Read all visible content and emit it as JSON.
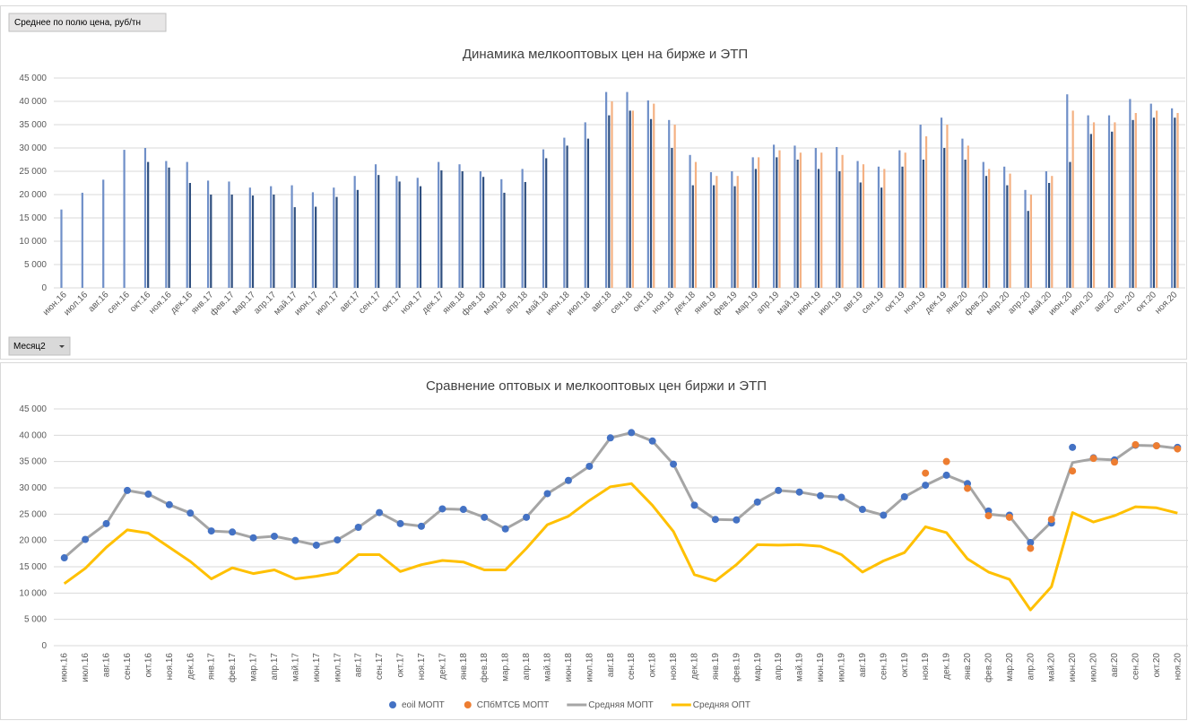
{
  "pivot": {
    "value_field": "Среднее по полю цена, руб/тн",
    "row_field": "Месяц2"
  },
  "chart_data": [
    {
      "type": "bar",
      "title": "Динамика мелкооптовых цен на бирже и ЭТП",
      "categories": [
        "июн.16",
        "июл.16",
        "авг.16",
        "сен.16",
        "окт.16",
        "ноя.16",
        "дек.16",
        "янв.17",
        "фев.17",
        "мар.17",
        "апр.17",
        "май.17",
        "июн.17",
        "июл.17",
        "авг.17",
        "сен.17",
        "окт.17",
        "ноя.17",
        "дек.17",
        "янв.18",
        "фев.18",
        "мар.18",
        "апр.18",
        "май.18",
        "июн.18",
        "июл.18",
        "авг.18",
        "сен.18",
        "окт.18",
        "ноя.18",
        "дек.18",
        "янв.19",
        "фев.19",
        "мар.19",
        "апр.19",
        "май.19",
        "июн.19",
        "июл.19",
        "авг.19",
        "сен.19",
        "окт.19",
        "ноя.19",
        "дек.19",
        "янв.20",
        "фев.20",
        "мар.20",
        "апр.20",
        "май.20",
        "июн.20",
        "июл.20",
        "авг.20",
        "сен.20",
        "окт.20",
        "ноя.20"
      ],
      "series": [
        {
          "color": "#6f8fc8",
          "values": [
            16800,
            20400,
            23200,
            29600,
            30000,
            27200,
            27000,
            23000,
            22800,
            21500,
            21800,
            22000,
            20500,
            21500,
            24000,
            26500,
            24000,
            23600,
            27000,
            26500,
            25000,
            23300,
            25500,
            29700,
            32200,
            35500,
            42000,
            42000,
            40200,
            36000,
            28500,
            24800,
            25000,
            28000,
            30700,
            30500,
            30000,
            30200,
            27200,
            26000,
            29500,
            35000,
            36500,
            32000,
            27000,
            26000,
            21000,
            25000,
            41500,
            37000,
            37000,
            40500,
            39500,
            38500
          ]
        },
        {
          "color": "#2f4f7f",
          "values": [
            null,
            null,
            null,
            null,
            27000,
            25800,
            22500,
            20000,
            20000,
            19800,
            20000,
            17300,
            17400,
            19500,
            21000,
            24200,
            22800,
            21800,
            25200,
            25000,
            23800,
            20400,
            22700,
            27800,
            30500,
            32000,
            37000,
            38000,
            36200,
            30000,
            22000,
            22000,
            21800,
            25500,
            28000,
            27500,
            25500,
            25000,
            22600,
            21500,
            26000,
            27500,
            30000,
            27500,
            24000,
            22000,
            16500,
            22500,
            27000,
            33000,
            33500,
            36000,
            36500,
            36500
          ]
        },
        {
          "color": "#f4b183",
          "values": [
            null,
            null,
            null,
            null,
            null,
            null,
            null,
            null,
            null,
            null,
            null,
            null,
            null,
            null,
            null,
            null,
            null,
            null,
            null,
            null,
            null,
            null,
            null,
            null,
            null,
            null,
            40000,
            38000,
            39500,
            35000,
            27000,
            24000,
            24000,
            28000,
            29500,
            29000,
            29000,
            28500,
            26500,
            25500,
            29000,
            32500,
            35000,
            30500,
            25500,
            24500,
            20000,
            24000,
            38000,
            35500,
            35500,
            37500,
            38000,
            37500
          ]
        }
      ],
      "ylim": [
        0,
        45000
      ],
      "yticks": [
        0,
        {
          "value": 5000,
          "label": "5 000"
        },
        {
          "value": 10000,
          "label": "10 000"
        },
        {
          "value": 15000,
          "label": "15 000"
        },
        {
          "value": 20000,
          "label": "20 000"
        },
        {
          "value": 25000,
          "label": "25 000"
        },
        {
          "value": 30000,
          "label": "30 000"
        },
        {
          "value": 35000,
          "label": "35 000"
        },
        {
          "value": 40000,
          "label": "40 000"
        },
        {
          "value": 45000,
          "label": "45 000"
        }
      ],
      "grid": true
    },
    {
      "type": "line",
      "title": "Сравнение оптовых и мелкооптовых цен биржи и ЭТП",
      "categories": [
        "июн.16",
        "июл.16",
        "авг.16",
        "сен.16",
        "окт.16",
        "ноя.16",
        "дек.16",
        "янв.17",
        "фев.17",
        "мар.17",
        "апр.17",
        "май.17",
        "июн.17",
        "июл.17",
        "авг.17",
        "сен.17",
        "окт.17",
        "ноя.17",
        "дек.17",
        "янв.18",
        "фев.18",
        "мар.18",
        "апр.18",
        "май.18",
        "июн.18",
        "июл.18",
        "авг.18",
        "сен.18",
        "окт.18",
        "ноя.18",
        "дек.18",
        "янв.19",
        "фев.19",
        "мар.19",
        "апр.19",
        "май.19",
        "июн.19",
        "июл.19",
        "авг.19",
        "сен.19",
        "окт.19",
        "ноя.19",
        "дек.19",
        "янв.20",
        "фев.20",
        "мар.20",
        "апр.20",
        "май.20",
        "июн.20",
        "июл.20",
        "авг.20",
        "сен.20",
        "окт.20",
        "ноя.20"
      ],
      "series": [
        {
          "name": "eoil МОПТ",
          "color": "#4472c4",
          "style": "markers",
          "values": [
            16700,
            20200,
            23200,
            29500,
            28800,
            26800,
            25200,
            21800,
            21600,
            20500,
            20800,
            20000,
            19100,
            20100,
            22500,
            25300,
            23200,
            22700,
            26000,
            25900,
            24400,
            22200,
            24400,
            28900,
            31400,
            34100,
            39500,
            40500,
            38900,
            34500,
            26700,
            24000,
            23900,
            27300,
            29500,
            29200,
            28500,
            28200,
            25900,
            24800,
            28300,
            30500,
            32400,
            30800,
            25600,
            24800,
            19600,
            23300,
            37700,
            35700,
            35300,
            38100,
            38000,
            37700
          ]
        },
        {
          "name": "СПбМТСБ МОПТ",
          "color": "#ed7d31",
          "style": "markers",
          "values": [
            null,
            null,
            null,
            null,
            null,
            null,
            null,
            null,
            null,
            null,
            null,
            null,
            null,
            null,
            null,
            null,
            null,
            null,
            null,
            null,
            null,
            null,
            null,
            null,
            null,
            null,
            null,
            null,
            null,
            null,
            null,
            null,
            null,
            null,
            null,
            null,
            null,
            null,
            null,
            null,
            null,
            32800,
            35000,
            29900,
            24700,
            24400,
            18500,
            24000,
            33200,
            35600,
            34900,
            38200,
            38000,
            37400
          ]
        },
        {
          "name": "Средняя МОПТ",
          "color": "#a5a5a5",
          "style": "line",
          "values": [
            16700,
            20200,
            23200,
            29500,
            28800,
            26800,
            25200,
            21800,
            21600,
            20500,
            20800,
            20000,
            19100,
            20100,
            22500,
            25300,
            23200,
            22700,
            26000,
            25900,
            24400,
            22200,
            24400,
            28900,
            31400,
            34100,
            39500,
            40500,
            38900,
            34500,
            26700,
            24000,
            23900,
            27300,
            29500,
            29200,
            28500,
            28200,
            25900,
            24800,
            28300,
            30500,
            32400,
            30800,
            25000,
            24600,
            19600,
            23500,
            34800,
            35500,
            35300,
            38100,
            38000,
            37500
          ]
        },
        {
          "name": "Средняя ОПТ",
          "color": "#ffc000",
          "style": "line",
          "values": [
            11800,
            14700,
            18700,
            22000,
            21400,
            18700,
            16000,
            12700,
            14800,
            13700,
            14400,
            12700,
            13200,
            13900,
            17300,
            17300,
            14100,
            15400,
            16200,
            15900,
            14400,
            14400,
            18500,
            23000,
            24600,
            27600,
            30200,
            30800,
            26700,
            21700,
            13500,
            12300,
            15400,
            19200,
            19100,
            19200,
            18900,
            17300,
            14000,
            16100,
            17700,
            22600,
            21500,
            16500,
            14000,
            12600,
            6800,
            11200,
            25300,
            23500,
            24700,
            26400,
            26200,
            25200
          ]
        }
      ],
      "ylim": [
        0,
        45000
      ],
      "yticks": [
        0,
        {
          "value": 5000,
          "label": "5 000"
        },
        {
          "value": 10000,
          "label": "10 000"
        },
        {
          "value": 15000,
          "label": "15 000"
        },
        {
          "value": 20000,
          "label": "20 000"
        },
        {
          "value": 25000,
          "label": "25 000"
        },
        {
          "value": 30000,
          "label": "30 000"
        },
        {
          "value": 35000,
          "label": "35 000"
        },
        {
          "value": 40000,
          "label": "40 000"
        },
        {
          "value": 45000,
          "label": "45 000"
        }
      ],
      "grid": true
    }
  ]
}
